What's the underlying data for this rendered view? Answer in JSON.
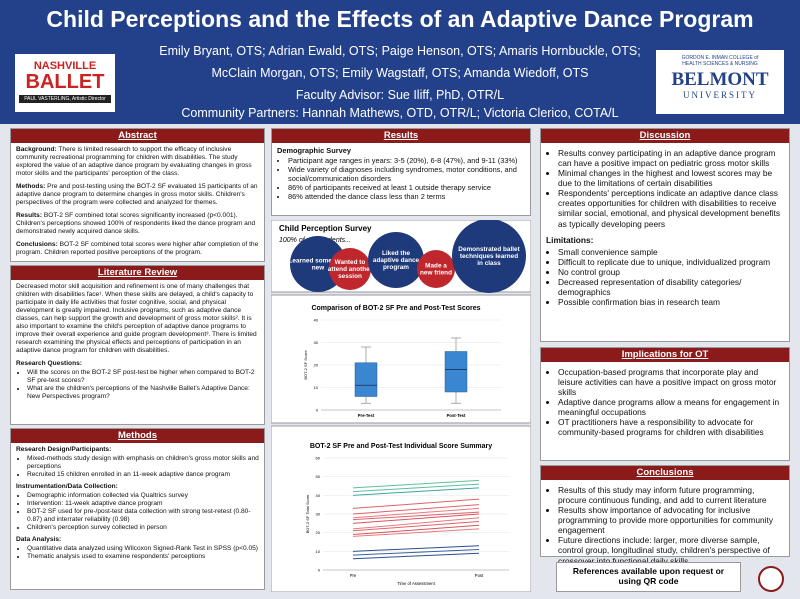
{
  "header": {
    "title": "Child Perceptions and the Effects of an Adaptive Dance Program",
    "authors": [
      "Emily Bryant, OTS; Adrian Ewald, OTS; Paige Henson, OTS; Amaris Hornbuckle, OTS;",
      "McClain Morgan, OTS; Emily Wagstaff, OTS; Amanda Wiedoff, OTS"
    ],
    "advisor": "Faculty Advisor: Sue Iliff, PhD, OTR/L",
    "partners": "Community Partners: Hannah Mathews, OTD, OTR/L; Victoria Clerico, COTA/L",
    "logo_left": {
      "line1": "NASHVILLE",
      "line2": "BALLET",
      "line3": "PAUL VASTERLING, Artistic Director"
    },
    "logo_right": {
      "line1": "GORDON E. INMAN COLLEGE of",
      "line2": "HEALTH SCIENCES & NURSING",
      "line3": "BELMONT",
      "line4": "UNIVERSITY"
    }
  },
  "abstract": {
    "heading": "Abstract",
    "paragraphs": [
      {
        "label": "Background:",
        "text": "There is limited research to support the efficacy of inclusive community recreational programming for children with disabilities. The study explored the value of an adaptive dance program by evaluating changes in gross motor skills and the participants' perception of the class."
      },
      {
        "label": "Methods:",
        "text": "Pre and post-testing using the BOT-2 SF evaluated 15 participants of an adaptive dance program to determine changes in gross motor skills. Children's perspectives of the program were collected and analyzed for themes."
      },
      {
        "label": "Results:",
        "text": "BOT-2 SF combined total scores significantly increased (p<0.001). Children's perceptions showed 100% of respondents liked the dance program and demonstrated newly acquired dance skills."
      },
      {
        "label": "Conclusions:",
        "text": "BOT-2 SF combined total scores were higher after completion of the program. Children reported positive perceptions of the program."
      }
    ]
  },
  "literature": {
    "heading": "Literature Review",
    "text": "Decreased motor skill acquisition and refinement is one of many challenges that children with disabilities face¹. When these skills are delayed, a child's capacity to participate in daily life activities that foster cognitive, social, and physical development is greatly impaired. Inclusive programs, such as adaptive dance classes, can help support the growth and development of gross motor skills². It is also important to examine the child's perception of adaptive dance programs to improve their overall experience and guide program development³. There is limited research examining the physical effects and perceptions of participation in an adaptive dance program for children with disabilities.",
    "questions_heading": "Research Questions:",
    "questions": [
      "Will the scores on the BOT-2 SF post-test be higher when compared to BOT-2 SF pre-test scores?",
      "What are the children's perceptions of the Nashville Ballet's Adaptive Dance: New Perspectives program?"
    ]
  },
  "methods": {
    "heading": "Methods",
    "subsections": [
      {
        "heading": "Research Design/Participants:",
        "items": [
          "Mixed-methods study design with emphasis on children's gross motor skills and perceptions",
          "Recruited 15 children enrolled in an 11-week adaptive dance program"
        ]
      },
      {
        "heading": "Instrumentation/Data Collection:",
        "items": [
          "Demographic information collected via Qualtrics survey",
          "Intervention: 11-week adaptive dance program",
          "BOT-2 SF used for pre-/post-test data collection with strong test-retest (0.80-0.87) and interrater reliability (0.98)",
          "Children's perception survey collected in person"
        ]
      },
      {
        "heading": "Data Analysis:",
        "items": [
          "Quantitative data analyzed using Wilcoxon Signed-Rank Test in SPSS (p<0.05)",
          "Thematic analysis used to examine respondents' perceptions"
        ]
      }
    ]
  },
  "results": {
    "heading": "Results",
    "demo_heading": "Demographic Survey",
    "items": [
      "Participant age ranges in years: 3-5 (20%), 6-8 (47%), and 9-11 (33%)",
      "Wide variety of diagnoses including syndromes, motor conditions, and social/communication disorders",
      "86% of participants received at least 1 outside therapy service",
      "86% attended the dance class less than 2 terms"
    ],
    "survey_title": "Child Perception Survey",
    "survey_subtitle": "100% of respondents...",
    "bubbles": [
      "Learned something new",
      "Wanted to attend another session",
      "Liked the adaptive dance program",
      "Made a new friend",
      "Demonstrated ballet techniques learned in class"
    ]
  },
  "chart_data": [
    {
      "type": "box",
      "title": "Comparison of BOT-2 SF Pre and Post-Test Scores",
      "ylabel": "BOT-2 SF Score",
      "categories": [
        "Pre-Test",
        "Post-Test"
      ],
      "min": [
        3,
        3
      ],
      "q1": [
        6,
        8
      ],
      "median": [
        11,
        18
      ],
      "q3": [
        21,
        26
      ],
      "max": [
        28,
        32
      ],
      "color": "#3b86d0",
      "ylim": [
        0,
        40
      ],
      "yticks": [
        0,
        10,
        20,
        30,
        40
      ],
      "grid": true
    },
    {
      "type": "line",
      "title": "BOT-2 SF Pre and Post-Test Individual Score Summary",
      "xlabel": "Time of Assessment",
      "ylabel": "BOT-2 SF Total Score",
      "categories": [
        "Pre",
        "Post"
      ],
      "ylim": [
        0,
        60
      ],
      "yticks": [
        0,
        10,
        20,
        30,
        40,
        50,
        60
      ],
      "grid": true,
      "series": [
        {
          "color": "#5fbf9a",
          "values": [
            44,
            48
          ]
        },
        {
          "color": "#5fbf9a",
          "values": [
            42,
            46
          ]
        },
        {
          "color": "#3aa5a5",
          "values": [
            40,
            44
          ]
        },
        {
          "color": "#e0626a",
          "values": [
            33,
            38
          ]
        },
        {
          "color": "#e0626a",
          "values": [
            30,
            35
          ]
        },
        {
          "color": "#e87a80",
          "values": [
            28,
            33
          ]
        },
        {
          "color": "#e0626a",
          "values": [
            27,
            31
          ]
        },
        {
          "color": "#d9545c",
          "values": [
            25,
            30
          ]
        },
        {
          "color": "#e87a80",
          "values": [
            22,
            28
          ]
        },
        {
          "color": "#e0626a",
          "values": [
            21,
            26
          ]
        },
        {
          "color": "#d9545c",
          "values": [
            19,
            24
          ]
        },
        {
          "color": "#e87a80",
          "values": [
            18,
            22
          ]
        },
        {
          "color": "#2a4f8f",
          "values": [
            10,
            13
          ]
        },
        {
          "color": "#3a5fa0",
          "values": [
            8,
            11
          ]
        },
        {
          "color": "#2a4f8f",
          "values": [
            6,
            9
          ]
        }
      ]
    }
  ],
  "discussion": {
    "heading": "Discussion",
    "items": [
      "Results convey participating in an adaptive dance program can have a positive impact on pediatric gross motor skills",
      "Minimal changes in the highest and lowest scores may be due to the limitations of certain disabilities",
      "Respondents' perceptions indicate an adaptive dance class creates opportunities for children with disabilities to receive similar social, emotional, and physical development benefits as typically developing peers"
    ],
    "limitations_heading": "Limitations:",
    "limitations": [
      "Small convenience sample",
      "Difficult to replicate due to unique, individualized program",
      "No control group",
      "Decreased representation of disability categories/ demographics",
      "Possible confirmation bias in research team"
    ]
  },
  "implications": {
    "heading": "Implications for OT",
    "items": [
      "Occupation-based programs that incorporate play and leisure activities can have a positive impact on gross motor skills",
      "Adaptive dance programs allow a means for engagement in meaningful occupations",
      "OT practitioners have a responsibility to advocate for community-based programs for children with disabilities"
    ]
  },
  "conclusions": {
    "heading": "Conclusions",
    "items": [
      "Results of this study may inform future programming, procure continuous funding, and add to current literature",
      "Results show importance of advocating for inclusive programming to provide more opportunities for community engagement",
      "Future directions include: larger, more diverse sample, control group, longitudinal study, children's perspective of crossover into functional daily skills"
    ]
  },
  "references": "References available upon request or using QR code"
}
